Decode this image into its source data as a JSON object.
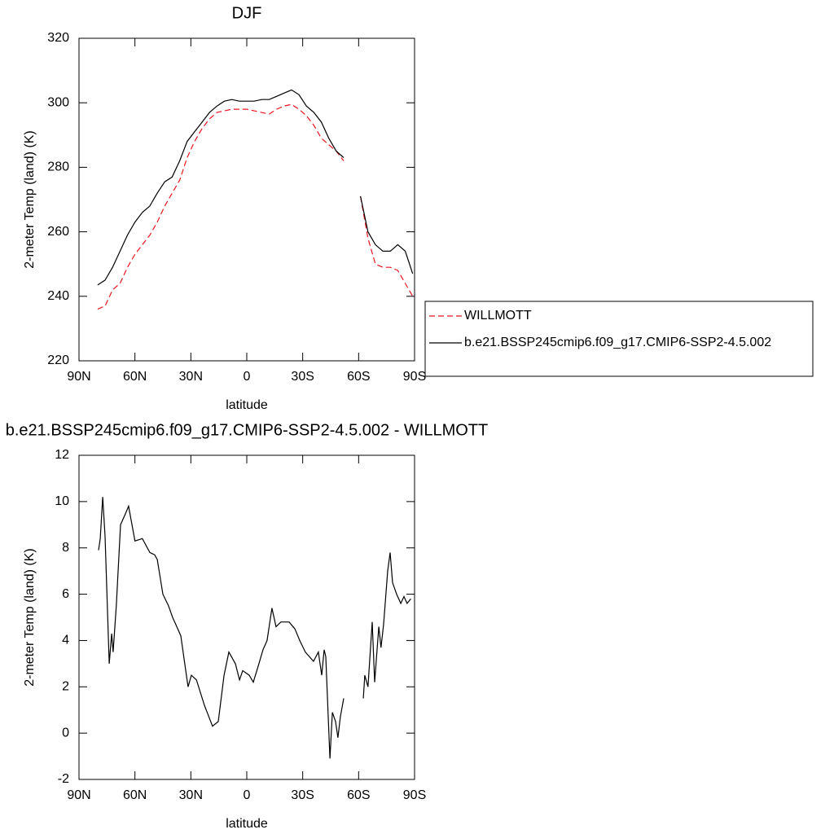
{
  "chart_data": [
    {
      "type": "line",
      "title": "DJF",
      "xlabel": "latitude",
      "ylabel": "2-meter Temp (land) (K)",
      "x": [
        80,
        76,
        72,
        68,
        64,
        60,
        56,
        52,
        48,
        44,
        40,
        36,
        32,
        28,
        24,
        20,
        16,
        12,
        8,
        4,
        0,
        -4,
        -8,
        -12,
        -16,
        -20,
        -24,
        -28,
        -32,
        -36,
        -40,
        -44,
        -48,
        -52,
        -56,
        -61,
        -65,
        -69,
        -73,
        -77,
        -81,
        -85,
        -89
      ],
      "series": [
        {
          "name": "WILLMOTT",
          "color": "#e8141e",
          "dashed": true,
          "values": [
            236,
            237,
            242,
            244,
            249,
            253,
            256,
            259,
            263,
            268,
            272,
            276,
            283,
            288,
            292,
            295,
            297,
            297.5,
            298,
            298,
            298,
            297.5,
            297,
            296.5,
            298,
            299,
            299.5,
            298,
            296,
            293,
            289,
            287,
            285,
            282,
            null,
            271,
            258,
            250,
            249,
            249,
            248,
            244,
            240
          ]
        },
        {
          "name": "b.e21.BSSP245cmip6.f09_g17.CMIP6-SSP2-4.5.002",
          "color": "#000000",
          "dashed": false,
          "values": [
            243.5,
            245,
            249,
            254,
            259,
            263,
            266,
            268,
            272,
            275.5,
            277,
            282,
            288,
            291,
            294,
            297,
            299,
            300.5,
            301,
            300.5,
            300.5,
            300.5,
            301,
            301,
            302,
            303,
            304,
            302.5,
            299,
            297,
            294,
            289,
            285,
            283,
            null,
            271,
            260,
            256,
            254,
            254,
            256,
            254,
            247
          ]
        }
      ],
      "xlim": [
        90,
        -90
      ],
      "xticks": [
        {
          "value": 90,
          "label": "90N"
        },
        {
          "value": 60,
          "label": "60N"
        },
        {
          "value": 30,
          "label": "30N"
        },
        0,
        {
          "value": -30,
          "label": "30S"
        },
        {
          "value": -60,
          "label": "60S"
        },
        {
          "value": -90,
          "label": "90S"
        }
      ],
      "ylim": [
        220,
        320
      ],
      "yticks": [
        220,
        240,
        260,
        280,
        300,
        320
      ],
      "legend": "right"
    },
    {
      "type": "line",
      "title": "b.e21.BSSP245cmip6.f09_g17.CMIP6-SSP2-4.5.002 - WILLMOTT",
      "xlabel": "latitude",
      "ylabel": "2-meter Temp (land) (K)",
      "x": [
        79.5,
        78.6,
        77.3,
        76,
        73.8,
        72.5,
        71.7,
        70,
        67.7,
        65.5,
        63.4,
        60,
        56,
        52,
        49.4,
        48,
        45,
        42,
        39.8,
        37,
        35.4,
        31.5,
        29.7,
        27,
        22.7,
        18.4,
        15.3,
        12.2,
        9.6,
        6.1,
        3.9,
        2.2,
        -1.3,
        -3.5,
        -6.5,
        -8.7,
        -10.9,
        -13.5,
        -15.7,
        -18.3,
        -22.7,
        -25.8,
        -28.4,
        -31.4,
        -35.8,
        -38.4,
        -40.2,
        -41.5,
        -42.4,
        -44.6,
        -45.9,
        -47.6,
        -48.9,
        -50.2,
        -52,
        -57,
        -62.5,
        -63.3,
        -65,
        -67.3,
        -68.6,
        -70.8,
        -72,
        -73.4,
        -75.6,
        -76.9,
        -78.2,
        -80.4,
        -82.6,
        -84.3,
        -86,
        -88
      ],
      "values": [
        7.9,
        8.4,
        10.2,
        8.5,
        3,
        4.3,
        3.5,
        5.5,
        9,
        9.4,
        9.8,
        8.3,
        8.4,
        7.8,
        7.7,
        7.5,
        6,
        5.5,
        5,
        4.5,
        4.2,
        2,
        2.5,
        2.3,
        1.2,
        0.3,
        0.5,
        2.5,
        3.5,
        3,
        2.3,
        2.7,
        2.5,
        2.2,
        3,
        3.6,
        4,
        5.4,
        4.6,
        4.8,
        4.8,
        4.5,
        4,
        3.5,
        3.1,
        3.5,
        2.5,
        3.6,
        3.3,
        -1.1,
        0.9,
        0.5,
        -0.2,
        0.7,
        1.5,
        null,
        1.5,
        2.5,
        2,
        4.8,
        2.2,
        4.6,
        3.7,
        4.7,
        7,
        7.8,
        6.5,
        6,
        5.6,
        5.9,
        5.6,
        5.8
      ],
      "color": "#000000",
      "xlim": [
        90,
        -90
      ],
      "xticks": [
        {
          "value": 90,
          "label": "90N"
        },
        {
          "value": 60,
          "label": "60N"
        },
        {
          "value": 30,
          "label": "30N"
        },
        0,
        {
          "value": -30,
          "label": "30S"
        },
        {
          "value": -60,
          "label": "60S"
        },
        {
          "value": -90,
          "label": "90S"
        }
      ],
      "ylim": [
        -2,
        12
      ],
      "yticks": [
        -2,
        0,
        2,
        4,
        6,
        8,
        10,
        12
      ]
    }
  ]
}
